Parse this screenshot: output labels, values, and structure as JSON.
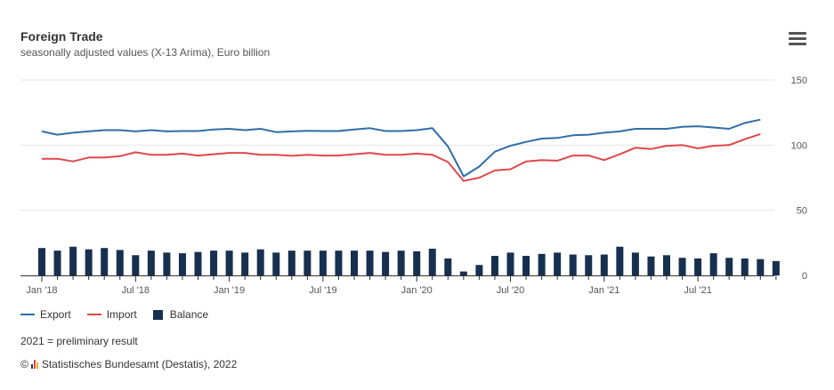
{
  "header": {
    "title": "Foreign Trade",
    "subtitle": "seasonally adjusted values (X-13 Arima), Euro billion",
    "menu_icon": "hamburger-menu-icon"
  },
  "legend": {
    "items": [
      {
        "label": "Export",
        "color": "#2f6ea8",
        "kind": "line"
      },
      {
        "label": "Import",
        "color": "#e0474c",
        "kind": "line"
      },
      {
        "label": "Balance",
        "color": "#17304f",
        "kind": "bar"
      }
    ]
  },
  "footer": {
    "note": "2021 = preliminary result",
    "copyright_symbol": "©",
    "source": "Statistisches Bundesamt (Destatis), 2022"
  },
  "chart_data": {
    "type": "line",
    "x_tick_labels": [
      "Jan '18",
      "Jul '18",
      "Jan '19",
      "Jul '19",
      "Jan '20",
      "Jul '20",
      "Jan '21",
      "Jul '21"
    ],
    "x": [
      "2018-01",
      "2018-02",
      "2018-03",
      "2018-04",
      "2018-05",
      "2018-06",
      "2018-07",
      "2018-08",
      "2018-09",
      "2018-10",
      "2018-11",
      "2018-12",
      "2019-01",
      "2019-02",
      "2019-03",
      "2019-04",
      "2019-05",
      "2019-06",
      "2019-07",
      "2019-08",
      "2019-09",
      "2019-10",
      "2019-11",
      "2019-12",
      "2020-01",
      "2020-02",
      "2020-03",
      "2020-04",
      "2020-05",
      "2020-06",
      "2020-07",
      "2020-08",
      "2020-09",
      "2020-10",
      "2020-11",
      "2020-12",
      "2021-01",
      "2021-02",
      "2021-03",
      "2021-04",
      "2021-05",
      "2021-06",
      "2021-07",
      "2021-08",
      "2021-09",
      "2021-10",
      "2021-11",
      "2021-12"
    ],
    "series": [
      {
        "name": "Export",
        "type": "line",
        "color": "#2f6ea8",
        "values": [
          110.5,
          108,
          109.5,
          110.5,
          111.5,
          111.5,
          110.5,
          111.5,
          110.5,
          110.8,
          110.8,
          112,
          112.5,
          111.5,
          112.5,
          110,
          110.5,
          111,
          110.8,
          110.8,
          112,
          113,
          110.8,
          110.8,
          111.5,
          113,
          99,
          76,
          83.5,
          95,
          99.5,
          102.5,
          105,
          105.5,
          107.5,
          108,
          109.5,
          110.5,
          112.5,
          112.5,
          112.5,
          114,
          114.5,
          113.5,
          112.5,
          117,
          119.5,
          null
        ]
      },
      {
        "name": "Import",
        "type": "line",
        "color": "#e0474c",
        "values": [
          89.5,
          89.5,
          87.5,
          90.5,
          90.5,
          91.5,
          94.5,
          92.5,
          92.5,
          93.5,
          92,
          93,
          94,
          94,
          92.5,
          92.5,
          91.8,
          92.5,
          92,
          92,
          93,
          94,
          92.5,
          92.5,
          93.5,
          92.5,
          87,
          72.5,
          75,
          80.5,
          81.5,
          87.5,
          88.5,
          88,
          92,
          92,
          88.5,
          93,
          98,
          97,
          99.5,
          100,
          97.5,
          99.5,
          100,
          104.5,
          108.5,
          null
        ]
      },
      {
        "name": "Balance",
        "type": "bar",
        "color": "#17304f",
        "values": [
          21,
          19,
          22,
          20,
          21,
          19.5,
          15.5,
          19,
          17.5,
          17,
          18,
          19,
          19,
          17.5,
          20,
          17.5,
          19,
          19,
          19,
          19,
          19,
          19,
          18,
          19,
          18.5,
          20.5,
          13,
          3,
          8,
          15,
          17.5,
          15,
          16.5,
          17.5,
          16,
          15.5,
          16,
          22,
          17.5,
          14.5,
          15.5,
          13.5,
          13,
          17,
          13.5,
          13,
          12.5,
          11
        ]
      }
    ],
    "y_ticks": [
      0,
      50,
      100,
      150
    ],
    "ylim": [
      0,
      150
    ],
    "grid": true,
    "legend_position": "bottom-left",
    "xlabel": "",
    "ylabel": ""
  }
}
